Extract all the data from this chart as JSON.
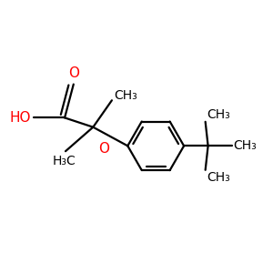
{
  "bg_color": "#ffffff",
  "bond_color": "#000000",
  "oxygen_color": "#ff0000",
  "line_width": 1.6,
  "figsize": [
    3.0,
    3.0
  ],
  "dpi": 100,
  "xlim": [
    0,
    1
  ],
  "ylim": [
    0,
    1
  ],
  "font_size_label": 10,
  "font_size_atom": 11
}
